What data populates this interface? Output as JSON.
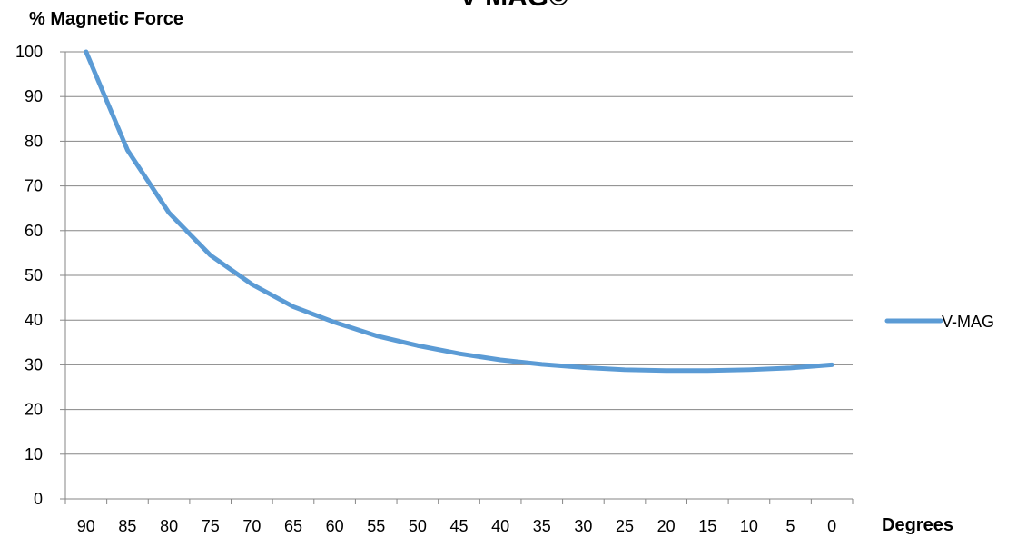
{
  "chart_data": {
    "type": "line",
    "title": "V-MAG©",
    "xlabel": "Degrees",
    "ylabel": "% Magnetic Force",
    "categories": [
      "90",
      "85",
      "80",
      "75",
      "70",
      "65",
      "60",
      "55",
      "50",
      "45",
      "40",
      "35",
      "30",
      "25",
      "20",
      "15",
      "10",
      "5",
      "0"
    ],
    "series": [
      {
        "name": "V-MAG",
        "color": "#5B9BD5",
        "values": [
          100,
          78,
          64,
          54.5,
          48,
          43,
          39.5,
          36.5,
          34.3,
          32.5,
          31.1,
          30.1,
          29.4,
          28.9,
          28.7,
          28.7,
          28.9,
          29.3,
          30
        ]
      }
    ],
    "ylim": [
      0,
      100
    ],
    "yticks": [
      0,
      10,
      20,
      30,
      40,
      50,
      60,
      70,
      80,
      90,
      100
    ],
    "grid": true,
    "legend_position": "right"
  }
}
